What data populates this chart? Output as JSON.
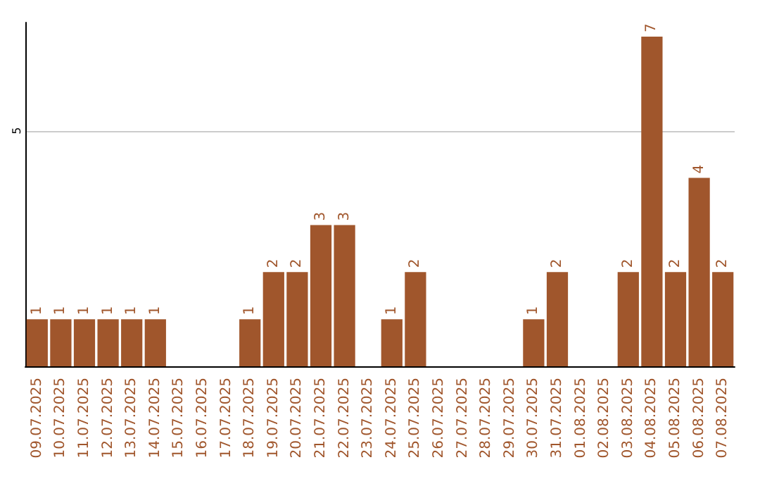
{
  "chart_data": {
    "type": "bar",
    "categories": [
      "09.07.2025",
      "10.07.2025",
      "11.07.2025",
      "12.07.2025",
      "13.07.2025",
      "14.07.2025",
      "15.07.2025",
      "16.07.2025",
      "17.07.2025",
      "18.07.2025",
      "19.07.2025",
      "20.07.2025",
      "21.07.2025",
      "22.07.2025",
      "23.07.2025",
      "24.07.2025",
      "25.07.2025",
      "26.07.2025",
      "27.07.2025",
      "28.07.2025",
      "29.07.2025",
      "30.07.2025",
      "31.07.2025",
      "01.08.2025",
      "02.08.2025",
      "03.08.2025",
      "04.08.2025",
      "05.08.2025",
      "06.08.2025",
      "07.08.2025"
    ],
    "values": [
      1,
      1,
      1,
      1,
      1,
      1,
      0,
      0,
      0,
      1,
      2,
      2,
      3,
      3,
      0,
      1,
      2,
      0,
      0,
      0,
      0,
      1,
      2,
      0,
      0,
      2,
      7,
      2,
      4,
      2
    ],
    "value_labels": [
      "1",
      "1",
      "1",
      "1",
      "1",
      "1",
      null,
      null,
      null,
      "1",
      "2",
      "2",
      "3",
      "3",
      null,
      "1",
      "2",
      null,
      null,
      null,
      null,
      "1",
      "2",
      null,
      null,
      "2",
      "7",
      "2",
      "4",
      "2"
    ],
    "color": "#a0562c",
    "ylim": [
      0,
      7.3
    ],
    "yticks": [
      5
    ],
    "grid": "y"
  }
}
